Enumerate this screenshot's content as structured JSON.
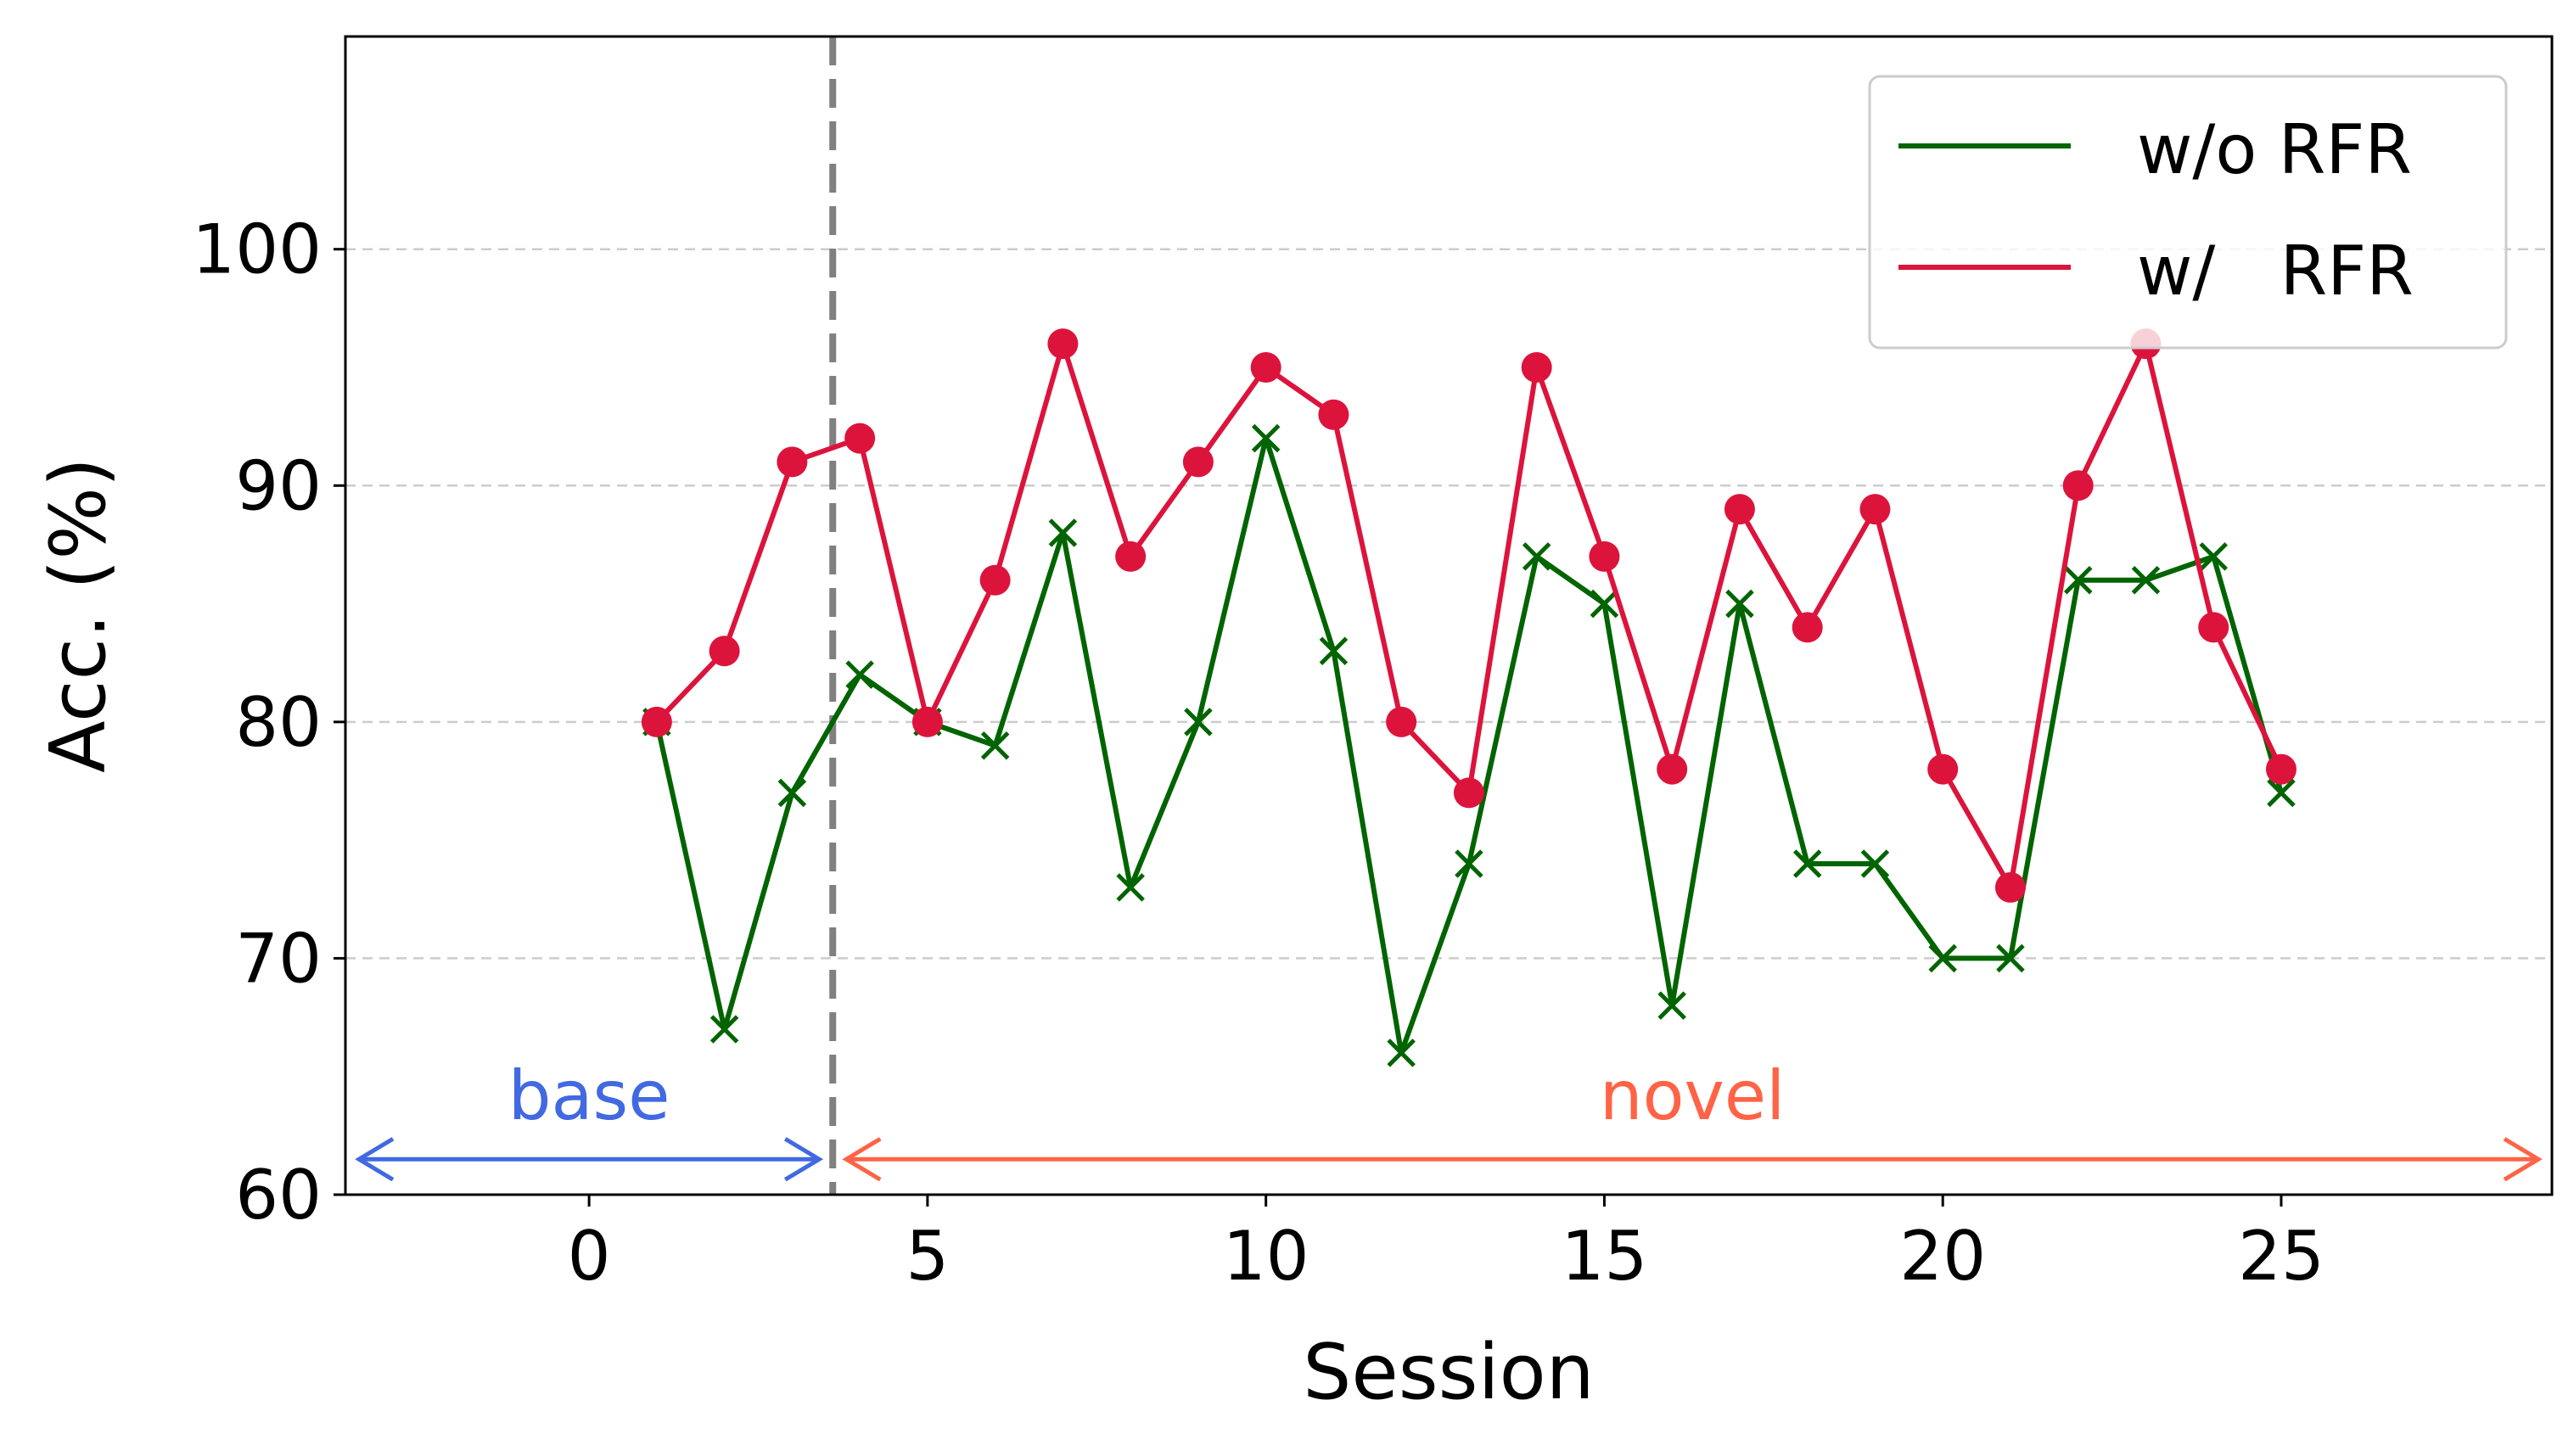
{
  "chart_data": {
    "type": "line",
    "title": "",
    "xlabel": "Session",
    "ylabel": "Acc. (%)",
    "xlim": [
      -3.6,
      29
    ],
    "ylim": [
      60,
      109
    ],
    "xticks": [
      0,
      5,
      10,
      15,
      20,
      25
    ],
    "yticks": [
      60,
      70,
      80,
      90,
      100
    ],
    "grid": "horizontal dashed",
    "legend_position": "top-right",
    "boundary_x": 3.6,
    "annotations": {
      "base": {
        "text": "base",
        "color": "#4169e1",
        "x_range": [
          -3.6,
          3.6
        ]
      },
      "novel": {
        "text": "novel",
        "color": "#ff6347",
        "x_range": [
          3.6,
          29
        ]
      }
    },
    "x": [
      1,
      2,
      3,
      4,
      5,
      6,
      7,
      8,
      9,
      10,
      11,
      12,
      13,
      14,
      15,
      16,
      17,
      18,
      19,
      20,
      21,
      22,
      23,
      24,
      25
    ],
    "series": [
      {
        "name": "w/o RFR",
        "color": "#006400",
        "marker": "x",
        "values": [
          80,
          67,
          77,
          82,
          80,
          79,
          88,
          73,
          80,
          92,
          83,
          66,
          74,
          87,
          85,
          68,
          85,
          74,
          74,
          70,
          70,
          86,
          86,
          87,
          77
        ]
      },
      {
        "name": "w/   RFR",
        "color": "#dc143c",
        "marker": "o",
        "values": [
          80,
          83,
          91,
          92,
          80,
          86,
          96,
          87,
          91,
          95,
          93,
          80,
          77,
          95,
          87,
          78,
          89,
          84,
          89,
          78,
          73,
          90,
          96,
          84,
          78
        ]
      }
    ]
  }
}
